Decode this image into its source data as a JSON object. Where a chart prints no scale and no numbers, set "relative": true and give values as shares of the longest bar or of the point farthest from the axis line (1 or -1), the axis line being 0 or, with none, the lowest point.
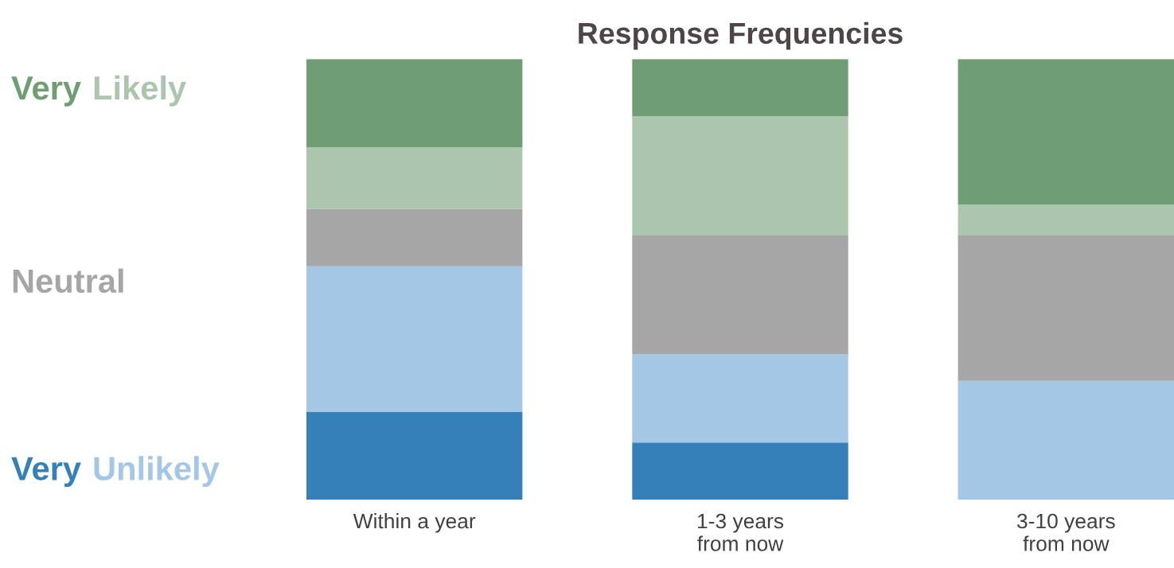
{
  "chart_data": {
    "type": "bar",
    "title": "Response Frequencies",
    "stacked": true,
    "relative": true,
    "legend": "left",
    "categories": [
      "Within a year",
      "1-3 years\nfrom now",
      "3-10 years\nfrom now"
    ],
    "series": [
      {
        "name": "Very",
        "color": "#3680b9",
        "values": [
          0.2,
          0.13,
          0
        ]
      },
      {
        "name": "Unlikely",
        "color": "#a3c7e4",
        "values": [
          0.33,
          0.2,
          0.27
        ]
      },
      {
        "name": "Neutral",
        "color": "#a6a6a6",
        "values": [
          0.13,
          0.27,
          0.33
        ]
      },
      {
        "name": "Likely",
        "color": "#acc6ae",
        "values": [
          0.14,
          0.27,
          0.07
        ]
      },
      {
        "name": "Very",
        "color": "#6f9e74",
        "values": [
          0.2,
          0.13,
          0.33
        ]
      }
    ]
  }
}
